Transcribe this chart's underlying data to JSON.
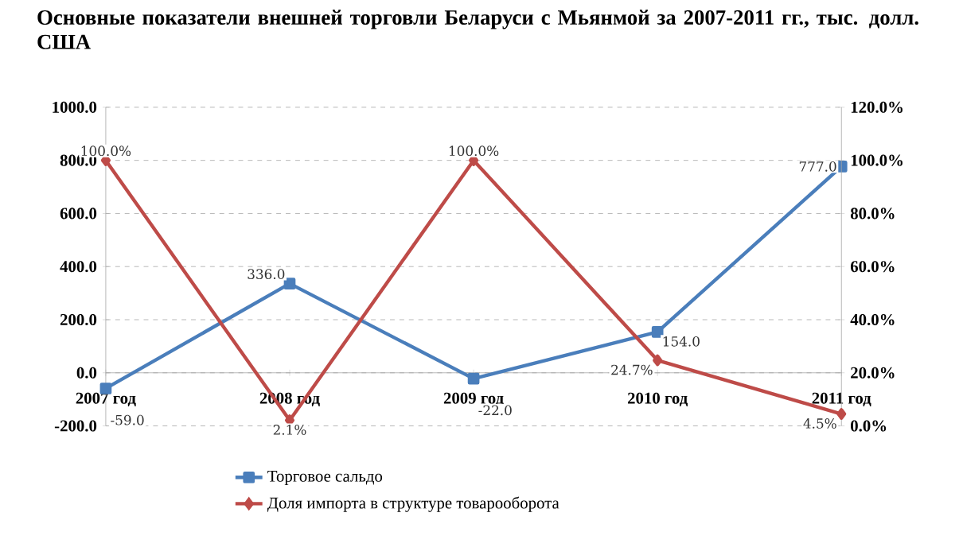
{
  "chart_data": {
    "type": "line",
    "title": "Основные показатели внешней торговли Беларуси с Мьянмой за 2007-2011 гг., тыс. долл. США",
    "categories": [
      "2007 год",
      "2008 год",
      "2009 год",
      "2010 год",
      "2011 год"
    ],
    "series": [
      {
        "name": "Торговое сальдо",
        "color": "#4a7ebb",
        "marker": "square",
        "values": [
          -59,
          336,
          -22,
          154,
          777
        ],
        "value_labels": [
          "-59.0",
          "336.0",
          "-22.0",
          "154.0",
          "777.0"
        ]
      },
      {
        "name": "Доля импорта в структуре товарооборота",
        "color": "#be4b48",
        "marker": "diamond",
        "axis": "y2",
        "values": [
          100,
          2.1,
          100,
          24.7,
          4.5
        ],
        "value_labels": [
          "100.0%",
          "2.1%",
          "100.0%",
          "24.7%",
          "4.5%"
        ]
      }
    ],
    "ylim": [
      -200,
      1000
    ],
    "yticks": [
      {
        "value": -200,
        "label": "-200.0"
      },
      {
        "value": 0,
        "label": "0.0"
      },
      {
        "value": 200,
        "label": "200.0"
      },
      {
        "value": 400,
        "label": "400.0"
      },
      {
        "value": 600,
        "label": "600.0"
      },
      {
        "value": 800,
        "label": "800.0"
      },
      {
        "value": 1000,
        "label": "1000.0"
      }
    ],
    "y2lim": [
      0,
      120
    ],
    "y2ticks": [
      {
        "value": 0,
        "label": "0.0%"
      },
      {
        "value": 20,
        "label": "20.0%"
      },
      {
        "value": 40,
        "label": "40.0%"
      },
      {
        "value": 60,
        "label": "60.0%"
      },
      {
        "value": 80,
        "label": "80.0%"
      },
      {
        "value": 100,
        "label": "100.0%"
      },
      {
        "value": 120,
        "label": "120.0%"
      }
    ],
    "grid": "y",
    "legend": "bottom"
  }
}
